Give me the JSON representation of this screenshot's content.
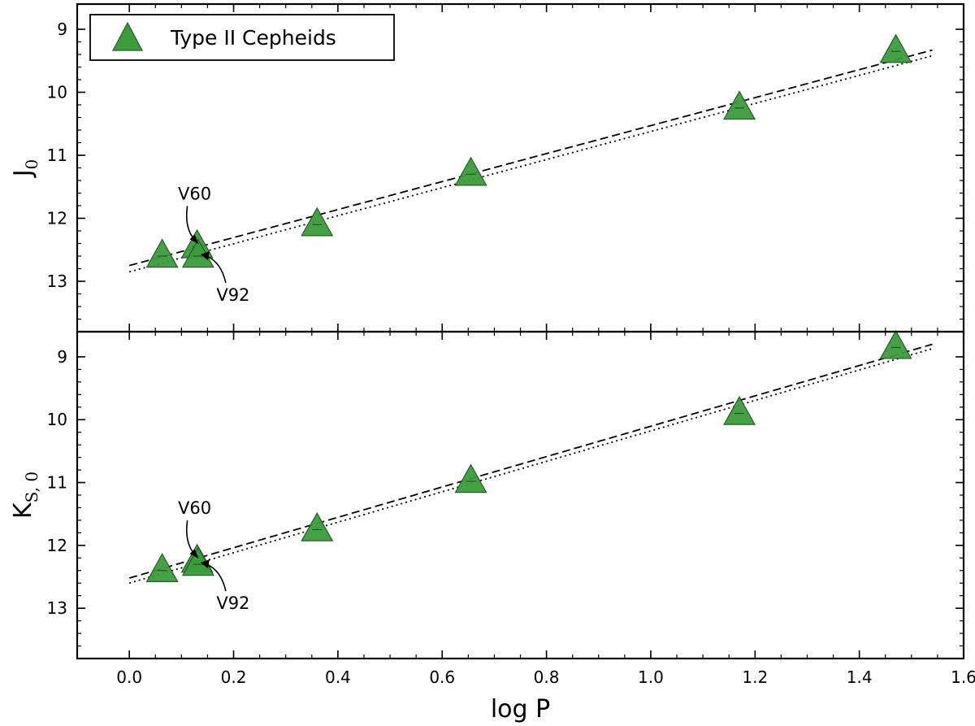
{
  "chart_data": [
    {
      "type": "scatter",
      "panel": "top",
      "ylabel": "J",
      "ylabel_sub": "0",
      "ylim": [
        13.8,
        8.6
      ],
      "xlim": [
        -0.1,
        1.6
      ],
      "y_inverted": true,
      "yticks": [
        9,
        10,
        11,
        12,
        13
      ],
      "legend": {
        "label": "Type II Cepheids",
        "placement": "top-left"
      },
      "series": [
        {
          "name": "Type II Cepheids",
          "color": "#3c9c3c",
          "marker": "triangle",
          "x": [
            0.063,
            0.13,
            0.132,
            0.36,
            0.655,
            1.17,
            1.47
          ],
          "y": [
            12.6,
            12.45,
            12.6,
            12.1,
            11.3,
            10.25,
            9.35
          ]
        }
      ],
      "fits": [
        {
          "style": "dashed",
          "x": [
            0.0,
            1.54
          ],
          "y": [
            12.75,
            9.33
          ]
        },
        {
          "style": "dotted",
          "x": [
            0.0,
            1.54
          ],
          "y": [
            12.85,
            9.42
          ]
        }
      ],
      "annotations": [
        {
          "text": "V60",
          "x": 0.13,
          "y": 12.45
        },
        {
          "text": "V92",
          "x": 0.132,
          "y": 12.6
        }
      ]
    },
    {
      "type": "scatter",
      "panel": "bottom",
      "ylabel": "K",
      "ylabel_sub": "S, 0",
      "ylim": [
        13.8,
        8.6
      ],
      "xlim": [
        -0.1,
        1.6
      ],
      "y_inverted": true,
      "yticks": [
        9,
        10,
        11,
        12,
        13
      ],
      "xticks": [
        0.0,
        0.2,
        0.4,
        0.6,
        0.8,
        1.0,
        1.2,
        1.4,
        1.6
      ],
      "xtick_labels": [
        "0.0",
        "0.2",
        "0.4",
        "0.6",
        "0.8",
        "1.0",
        "1.2",
        "1.4",
        "1.6"
      ],
      "xlabel": "log P",
      "series": [
        {
          "name": "Type II Cepheids",
          "color": "#3c9c3c",
          "marker": "triangle",
          "x": [
            0.063,
            0.13,
            0.132,
            0.36,
            0.655,
            1.17,
            1.47
          ],
          "y": [
            12.4,
            12.25,
            12.3,
            11.75,
            10.98,
            9.9,
            8.85
          ]
        }
      ],
      "fits": [
        {
          "style": "dashed",
          "x": [
            0.0,
            1.54
          ],
          "y": [
            12.52,
            8.8
          ]
        },
        {
          "style": "dotted",
          "x": [
            0.0,
            1.54
          ],
          "y": [
            12.6,
            8.87
          ]
        }
      ],
      "annotations": [
        {
          "text": "V60",
          "x": 0.13,
          "y": 12.25
        },
        {
          "text": "V92",
          "x": 0.132,
          "y": 12.3
        }
      ]
    }
  ]
}
